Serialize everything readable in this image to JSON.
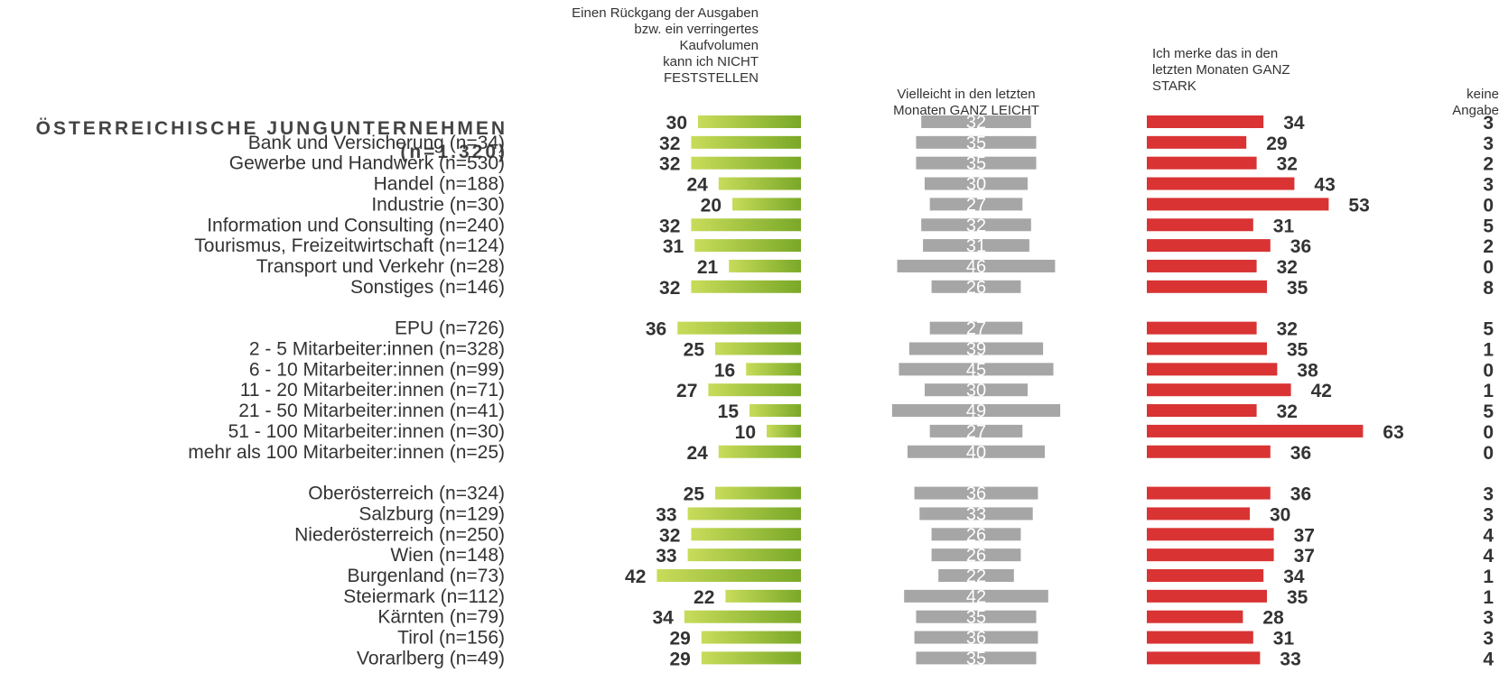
{
  "headers": {
    "green": [
      "Einen Rückgang der Ausgaben",
      "bzw. ein verringertes",
      "Kaufvolumen",
      "kann ich NICHT",
      "FESTSTELLEN"
    ],
    "gray": [
      "Vielleicht in den letzten",
      "Monaten GANZ LEICHT"
    ],
    "red": [
      "Ich merke das in den",
      "letzten Monaten GANZ",
      "STARK"
    ],
    "none": [
      "keine",
      "Angabe"
    ]
  },
  "title": [
    "ÖSTERREICHISCHE JUNGUNTERNEHMEN",
    "(n=1.320)"
  ],
  "colors": {
    "green_start": "#c8dc5a",
    "green_end": "#7aa828",
    "gray": "#a6a6a6",
    "red": "#d93333",
    "text": "#333333"
  },
  "chart_data": {
    "type": "bar",
    "series": [
      {
        "name": "Einen Rückgang der Ausgaben bzw. ein verringertes Kaufvolumen kann ich NICHT FESTSTELLEN",
        "key": "green"
      },
      {
        "name": "Vielleicht in den letzten Monaten GANZ LEICHT",
        "key": "gray"
      },
      {
        "name": "Ich merke das in den letzten Monaten GANZ STARK",
        "key": "red"
      },
      {
        "name": "keine Angabe",
        "key": "none"
      }
    ],
    "rows": [
      {
        "label": "",
        "group": 0,
        "total": true,
        "values": [
          30,
          32,
          34,
          3
        ]
      },
      {
        "label": "Bank und Versicherung (n=34)",
        "group": 1,
        "values": [
          32,
          35,
          29,
          3
        ]
      },
      {
        "label": "Gewerbe und Handwerk (n=530)",
        "group": 1,
        "values": [
          32,
          35,
          32,
          2
        ]
      },
      {
        "label": "Handel (n=188)",
        "group": 1,
        "values": [
          24,
          30,
          43,
          3
        ]
      },
      {
        "label": "Industrie (n=30)",
        "group": 1,
        "values": [
          20,
          27,
          53,
          0
        ]
      },
      {
        "label": "Information und Consulting (n=240)",
        "group": 1,
        "values": [
          32,
          32,
          31,
          5
        ]
      },
      {
        "label": "Tourismus, Freizeitwirtschaft (n=124)",
        "group": 1,
        "values": [
          31,
          31,
          36,
          2
        ]
      },
      {
        "label": "Transport und Verkehr (n=28)",
        "group": 1,
        "values": [
          21,
          46,
          32,
          0
        ]
      },
      {
        "label": "Sonstiges (n=146)",
        "group": 1,
        "values": [
          32,
          26,
          35,
          8
        ]
      },
      {
        "label": "EPU (n=726)",
        "group": 2,
        "values": [
          36,
          27,
          32,
          5
        ]
      },
      {
        "label": "2 - 5 Mitarbeiter:innen (n=328)",
        "group": 2,
        "values": [
          25,
          39,
          35,
          1
        ]
      },
      {
        "label": "6 - 10 Mitarbeiter:innen (n=99)",
        "group": 2,
        "values": [
          16,
          45,
          38,
          0
        ]
      },
      {
        "label": "11 - 20 Mitarbeiter:innen (n=71)",
        "group": 2,
        "values": [
          27,
          30,
          42,
          1
        ]
      },
      {
        "label": "21 - 50 Mitarbeiter:innen (n=41)",
        "group": 2,
        "values": [
          15,
          49,
          32,
          5
        ]
      },
      {
        "label": "51 - 100 Mitarbeiter:innen (n=30)",
        "group": 2,
        "values": [
          10,
          27,
          63,
          0
        ]
      },
      {
        "label": "mehr als 100 Mitarbeiter:innen (n=25)",
        "group": 2,
        "values": [
          24,
          40,
          36,
          0
        ]
      },
      {
        "label": "Oberösterreich (n=324)",
        "group": 3,
        "values": [
          25,
          36,
          36,
          3
        ]
      },
      {
        "label": "Salzburg (n=129)",
        "group": 3,
        "values": [
          33,
          33,
          30,
          3
        ]
      },
      {
        "label": "Niederösterreich (n=250)",
        "group": 3,
        "values": [
          32,
          26,
          37,
          4
        ]
      },
      {
        "label": "Wien (n=148)",
        "group": 3,
        "values": [
          33,
          26,
          37,
          4
        ]
      },
      {
        "label": "Burgenland (n=73)",
        "group": 3,
        "values": [
          42,
          22,
          34,
          1
        ]
      },
      {
        "label": "Steiermark (n=112)",
        "group": 3,
        "values": [
          22,
          42,
          35,
          1
        ]
      },
      {
        "label": "Kärnten (n=79)",
        "group": 3,
        "values": [
          34,
          35,
          28,
          3
        ]
      },
      {
        "label": "Tirol (n=156)",
        "group": 3,
        "values": [
          29,
          36,
          31,
          3
        ]
      },
      {
        "label": "Vorarlberg (n=49)",
        "group": 3,
        "values": [
          29,
          35,
          33,
          4
        ]
      }
    ]
  }
}
